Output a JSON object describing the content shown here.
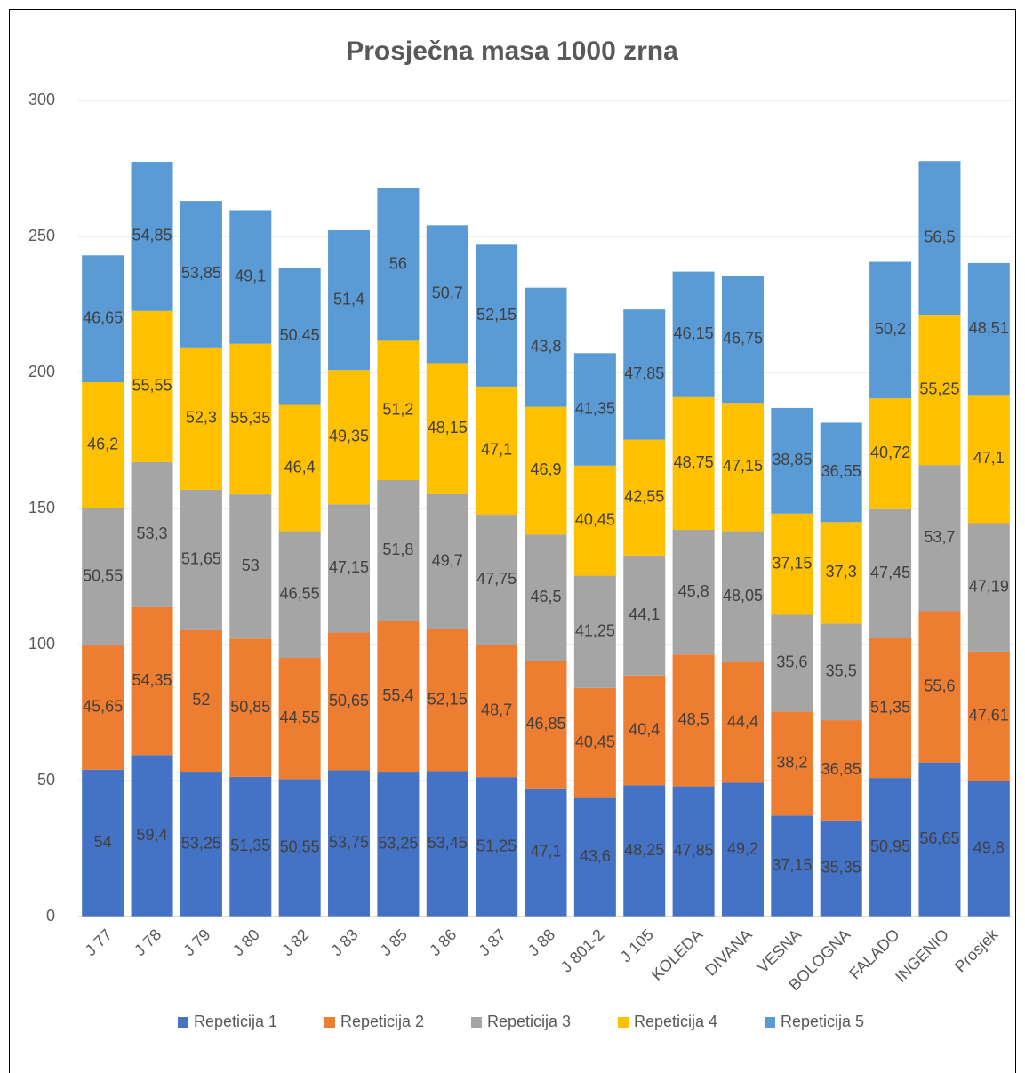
{
  "chart_data": {
    "type": "stacked_bar",
    "title": "Prosječna masa 1000 zrna",
    "categories": [
      "J 77",
      "J 78",
      "J 79",
      "J 80",
      "J 82",
      "J 83",
      "J 85",
      "J 86",
      "J 87",
      "J 88",
      "J 801-2",
      "J 105",
      "KOLEDA",
      "DIVANA",
      "VESNA",
      "BOLOGNA",
      "FALADO",
      "INGENIO",
      "Prosjek"
    ],
    "series": [
      {
        "name": "Repeticija 1",
        "color": "#4472c4",
        "values": [
          54,
          59.4,
          53.25,
          51.35,
          50.55,
          53.75,
          53.25,
          53.45,
          51.25,
          47.1,
          43.6,
          48.25,
          47.85,
          49.2,
          37.15,
          35.35,
          50.95,
          56.65,
          49.8
        ],
        "value_labels": [
          "54",
          "59,4",
          "53,25",
          "51,35",
          "50,55",
          "53,75",
          "53,25",
          "53,45",
          "51,25",
          "47,1",
          "43,6",
          "48,25",
          "47,85",
          "49,2",
          "37,15",
          "35,35",
          "50,95",
          "56,65",
          "49,8"
        ]
      },
      {
        "name": "Repeticija 2",
        "color": "#ed7d31",
        "values": [
          45.65,
          54.35,
          52,
          50.85,
          44.55,
          50.65,
          55.4,
          52.15,
          48.7,
          46.85,
          40.45,
          40.4,
          48.5,
          44.4,
          38.2,
          36.85,
          51.35,
          55.6,
          47.61
        ],
        "value_labels": [
          "45,65",
          "54,35",
          "52",
          "50,85",
          "44,55",
          "50,65",
          "55,4",
          "52,15",
          "48,7",
          "46,85",
          "40,45",
          "40,4",
          "48,5",
          "44,4",
          "38,2",
          "36,85",
          "51,35",
          "55,6",
          "47,61"
        ]
      },
      {
        "name": "Repeticija 3",
        "color": "#a5a5a5",
        "values": [
          50.55,
          53.3,
          51.65,
          53,
          46.55,
          47.15,
          51.8,
          49.7,
          47.75,
          46.5,
          41.25,
          44.1,
          45.8,
          48.05,
          35.6,
          35.5,
          47.45,
          53.7,
          47.19
        ],
        "value_labels": [
          "50,55",
          "53,3",
          "51,65",
          "53",
          "46,55",
          "47,15",
          "51,8",
          "49,7",
          "47,75",
          "46,5",
          "41,25",
          "44,1",
          "45,8",
          "48,05",
          "35,6",
          "35,5",
          "47,45",
          "53,7",
          "47,19"
        ]
      },
      {
        "name": "Repeticija 4",
        "color": "#ffc000",
        "values": [
          46.2,
          55.55,
          52.3,
          55.35,
          46.4,
          49.35,
          51.2,
          48.15,
          47.1,
          46.9,
          40.45,
          42.55,
          48.75,
          47.15,
          37.15,
          37.3,
          40.72,
          55.25,
          47.1
        ],
        "value_labels": [
          "46,2",
          "55,55",
          "52,3",
          "55,35",
          "46,4",
          "49,35",
          "51,2",
          "48,15",
          "47,1",
          "46,9",
          "40,45",
          "42,55",
          "48,75",
          "47,15",
          "37,15",
          "37,3",
          "40,72",
          "55,25",
          "47,1"
        ]
      },
      {
        "name": "Repeticija 5",
        "color": "#5b9bd5",
        "values": [
          46.65,
          54.85,
          53.85,
          49.1,
          50.45,
          51.4,
          56,
          50.7,
          52.15,
          43.8,
          41.35,
          47.85,
          46.15,
          46.75,
          38.85,
          36.55,
          50.2,
          56.5,
          48.51
        ],
        "value_labels": [
          "46,65",
          "54,85",
          "53,85",
          "49,1",
          "50,45",
          "51,4",
          "56",
          "50,7",
          "52,15",
          "43,8",
          "41,35",
          "47,85",
          "46,15",
          "46,75",
          "38,85",
          "36,55",
          "50,2",
          "56,5",
          "48,51"
        ]
      }
    ],
    "ylim": [
      0,
      300
    ],
    "yticks": [
      0,
      50,
      100,
      150,
      200,
      250,
      300
    ],
    "grid": true,
    "legend": "bottom"
  }
}
